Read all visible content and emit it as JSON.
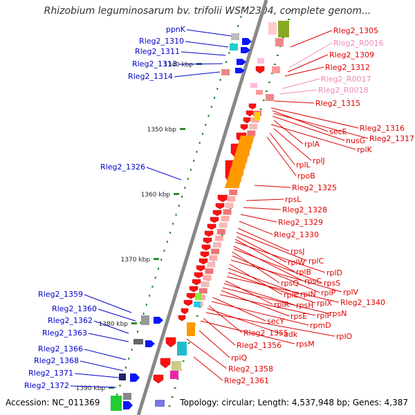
{
  "title": "Rhizobium leguminosarum bv. trifolii WSM2304, complete genom...",
  "footer": {
    "accession": "Accession: NC_011369",
    "topology": "Topology: circular; Length: 4,537,948 bp; Genes: 4,387"
  },
  "colors": {
    "backbone": "#888888",
    "tick": "#2e8b2e",
    "left_label": "#0000cc",
    "right_label": "#e00000",
    "rna_label": "#ee88bb",
    "gene_red": "#ff1010",
    "gene_blue": "#0a14ff"
  },
  "ticks": [
    "1340 kbp",
    "1350 kbp",
    "1360 kbp",
    "1370 kbp",
    "1380 kbp",
    "1390 kbp"
  ],
  "left_labels": [
    "ppnK",
    "Rleg2_1310",
    "Rleg2_1311",
    "Rleg2_1313",
    "Rleg2_1314",
    "Rleg2_1326",
    "Rleg2_1359",
    "Rleg2_1360",
    "Rleg2_1362",
    "Rleg2_1363",
    "Rleg2_1366",
    "Rleg2_1368",
    "Rleg2_1371",
    "Rleg2_1372"
  ],
  "right_labels": [
    {
      "text": "Rleg2_1305",
      "kind": "gene"
    },
    {
      "text": "Rleg2_R0016",
      "kind": "rna"
    },
    {
      "text": "Rleg2_1309",
      "kind": "gene"
    },
    {
      "text": "Rleg2_1312",
      "kind": "gene"
    },
    {
      "text": "Rleg2_R0017",
      "kind": "rna"
    },
    {
      "text": "Rleg2_R0018",
      "kind": "rna"
    },
    {
      "text": "Rleg2_1315",
      "kind": "gene"
    },
    {
      "text": "Rleg2_1316",
      "kind": "gene"
    },
    {
      "text": "secE",
      "kind": "gene"
    },
    {
      "text": "Rleg2_1317",
      "kind": "gene"
    },
    {
      "text": "nusG",
      "kind": "gene"
    },
    {
      "text": "rplA",
      "kind": "gene"
    },
    {
      "text": "rplK",
      "kind": "gene"
    },
    {
      "text": "rplJ",
      "kind": "gene"
    },
    {
      "text": "rplL",
      "kind": "gene"
    },
    {
      "text": "rpoB",
      "kind": "gene"
    },
    {
      "text": "Rleg2_1325",
      "kind": "gene"
    },
    {
      "text": "rpsL",
      "kind": "gene"
    },
    {
      "text": "Rleg2_1328",
      "kind": "gene"
    },
    {
      "text": "Rleg2_1329",
      "kind": "gene"
    },
    {
      "text": "Rleg2_1330",
      "kind": "gene"
    },
    {
      "text": "rpsJ",
      "kind": "gene"
    },
    {
      "text": "rplC",
      "kind": "gene"
    },
    {
      "text": "rplW",
      "kind": "gene"
    },
    {
      "text": "rplB",
      "kind": "gene"
    },
    {
      "text": "rplD",
      "kind": "gene"
    },
    {
      "text": "rpsC",
      "kind": "gene"
    },
    {
      "text": "rpsS",
      "kind": "gene"
    },
    {
      "text": "rpsQ",
      "kind": "gene"
    },
    {
      "text": "rplP",
      "kind": "gene"
    },
    {
      "text": "rplV",
      "kind": "gene"
    },
    {
      "text": "rplE",
      "kind": "gene"
    },
    {
      "text": "rplN",
      "kind": "gene"
    },
    {
      "text": "rplX",
      "kind": "gene"
    },
    {
      "text": "Rleg2_1340",
      "kind": "gene"
    },
    {
      "text": "rplR",
      "kind": "gene"
    },
    {
      "text": "rpsH",
      "kind": "gene"
    },
    {
      "text": "rpsN",
      "kind": "gene"
    },
    {
      "text": "rpsE",
      "kind": "gene"
    },
    {
      "text": "rplF",
      "kind": "gene"
    },
    {
      "text": "secY",
      "kind": "gene"
    },
    {
      "text": "rpmD",
      "kind": "gene"
    },
    {
      "text": "Rleg2_1355",
      "kind": "gene"
    },
    {
      "text": "adk",
      "kind": "gene"
    },
    {
      "text": "rplO",
      "kind": "gene"
    },
    {
      "text": "Rleg2_1356",
      "kind": "gene"
    },
    {
      "text": "rpsM",
      "kind": "gene"
    },
    {
      "text": "rplQ",
      "kind": "gene"
    },
    {
      "text": "Rleg2_1358",
      "kind": "gene"
    },
    {
      "text": "Rleg2_1361",
      "kind": "gene"
    }
  ]
}
